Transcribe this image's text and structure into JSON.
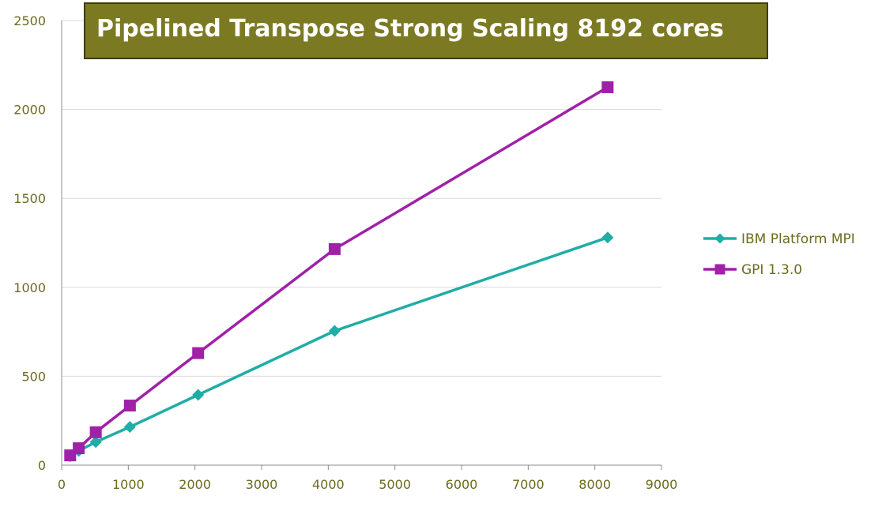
{
  "chart_data": {
    "type": "line",
    "title": "Pipelined Transpose Strong Scaling 8192 cores",
    "xlabel": "",
    "ylabel": "",
    "xlim": [
      0,
      9000
    ],
    "ylim": [
      0,
      2500
    ],
    "x_ticks": [
      0,
      1000,
      2000,
      3000,
      4000,
      5000,
      6000,
      7000,
      8000,
      9000
    ],
    "y_ticks": [
      0,
      500,
      1000,
      1500,
      2000,
      2500
    ],
    "grid": "horizontal",
    "legend": "right",
    "series": [
      {
        "name": "IBM Platform MPI",
        "color": "#1fada6",
        "marker": "diamond",
        "x": [
          128,
          256,
          512,
          1024,
          2048,
          4096,
          8192
        ],
        "y": [
          50,
          80,
          130,
          215,
          395,
          755,
          1280
        ]
      },
      {
        "name": "GPI 1.3.0",
        "color": "#a020a8",
        "marker": "square",
        "x": [
          128,
          256,
          512,
          1024,
          2048,
          4096,
          8192
        ],
        "y": [
          55,
          95,
          185,
          335,
          630,
          1215,
          2125
        ]
      }
    ],
    "colors": {
      "title_bg": "#7b7a23",
      "title_border": "#3d3d0f",
      "tick_text": "#6b6b1e"
    }
  }
}
